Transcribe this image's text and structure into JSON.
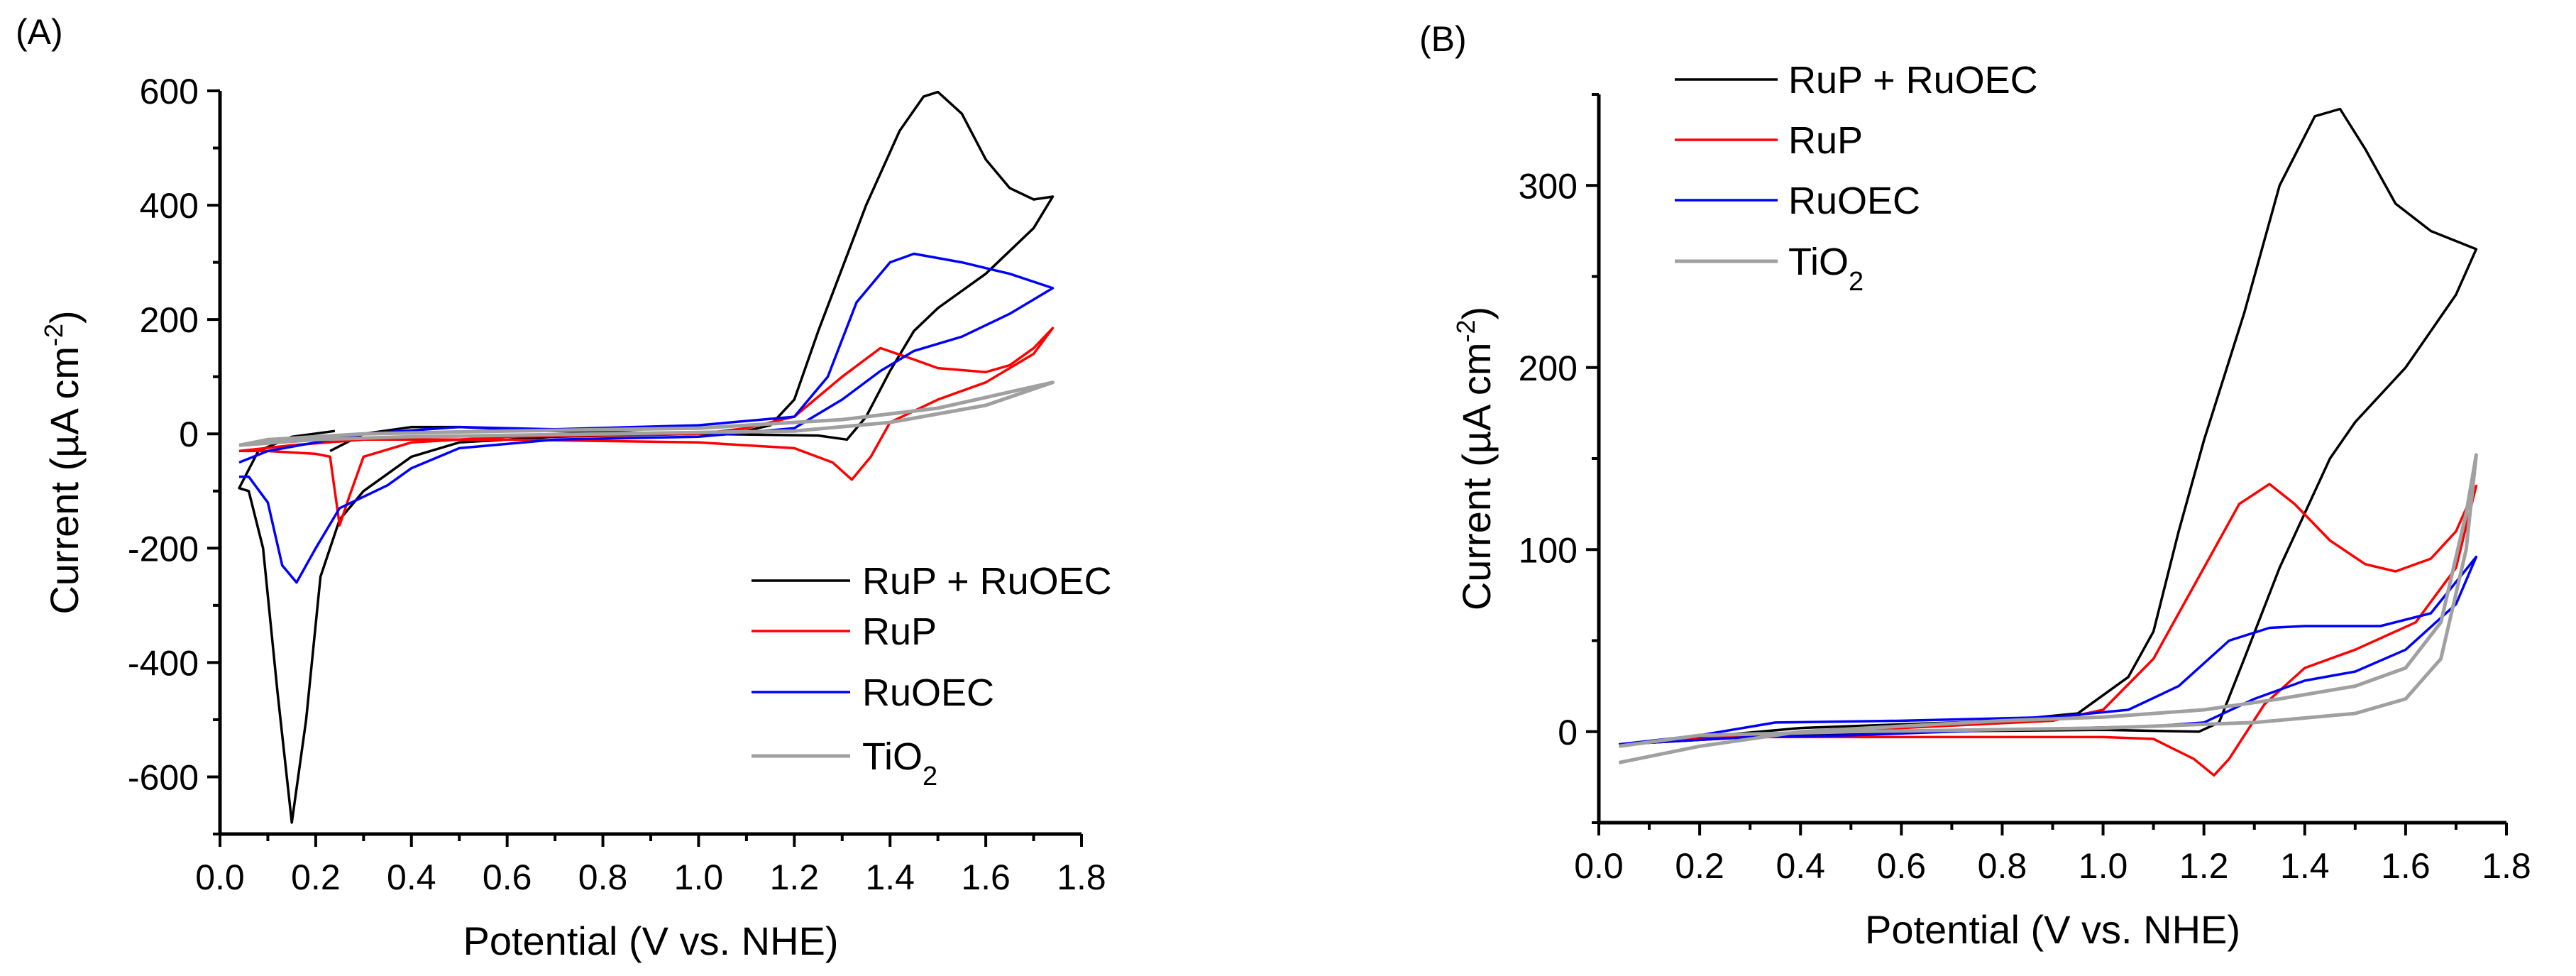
{
  "chart_data": [
    {
      "type": "line",
      "panel_label": "(A)",
      "xlabel": "Potential (V vs. NHE)",
      "ylabel": {
        "main": "Current (µA cm",
        "sup": "-2",
        "end": ")"
      },
      "xlim": [
        0.0,
        1.8
      ],
      "ylim": [
        -700,
        600
      ],
      "xticks": [
        "0.0",
        "0.2",
        "0.4",
        "0.6",
        "0.8",
        "1.0",
        "1.2",
        "1.4",
        "1.6",
        "1.8"
      ],
      "yticks": [
        "-600",
        "-400",
        "-200",
        "0",
        "200",
        "400",
        "600"
      ],
      "grid": false,
      "legend_position": "bottom-right",
      "series": [
        {
          "name": "RuP + RuOEC",
          "color": "#000000",
          "points": [
            [
              0.24,
              5
            ],
            [
              0.15,
              -5
            ],
            [
              0.08,
              -30
            ],
            [
              0.04,
              -95
            ],
            [
              0.06,
              -100
            ],
            [
              0.09,
              -200
            ],
            [
              0.12,
              -450
            ],
            [
              0.15,
              -680
            ],
            [
              0.18,
              -500
            ],
            [
              0.21,
              -250
            ],
            [
              0.25,
              -150
            ],
            [
              0.3,
              -100
            ],
            [
              0.4,
              -40
            ],
            [
              0.5,
              -15
            ],
            [
              0.7,
              -5
            ],
            [
              1.0,
              0
            ],
            [
              1.1,
              5
            ],
            [
              1.15,
              15
            ],
            [
              1.2,
              60
            ],
            [
              1.25,
              180
            ],
            [
              1.3,
              290
            ],
            [
              1.35,
              400
            ],
            [
              1.42,
              530
            ],
            [
              1.47,
              590
            ],
            [
              1.5,
              598
            ],
            [
              1.55,
              560
            ],
            [
              1.6,
              480
            ],
            [
              1.65,
              430
            ],
            [
              1.7,
              410
            ],
            [
              1.74,
              415
            ],
            [
              1.7,
              360
            ],
            [
              1.6,
              280
            ],
            [
              1.5,
              220
            ],
            [
              1.45,
              180
            ],
            [
              1.4,
              110
            ],
            [
              1.35,
              30
            ],
            [
              1.31,
              -10
            ],
            [
              1.25,
              -3
            ],
            [
              1.0,
              0
            ],
            [
              0.7,
              5
            ],
            [
              0.5,
              12
            ],
            [
              0.4,
              12
            ],
            [
              0.3,
              0
            ],
            [
              0.23,
              -30
            ]
          ]
        },
        {
          "name": "RuP",
          "color": "#ff0000",
          "points": [
            [
              0.04,
              -30
            ],
            [
              0.1,
              -30
            ],
            [
              0.2,
              -35
            ],
            [
              0.23,
              -40
            ],
            [
              0.25,
              -160
            ],
            [
              0.27,
              -110
            ],
            [
              0.3,
              -40
            ],
            [
              0.4,
              -15
            ],
            [
              0.6,
              -5
            ],
            [
              1.0,
              0
            ],
            [
              1.1,
              10
            ],
            [
              1.2,
              30
            ],
            [
              1.3,
              100
            ],
            [
              1.38,
              150
            ],
            [
              1.45,
              130
            ],
            [
              1.5,
              115
            ],
            [
              1.6,
              108
            ],
            [
              1.65,
              120
            ],
            [
              1.7,
              150
            ],
            [
              1.74,
              185
            ],
            [
              1.7,
              140
            ],
            [
              1.6,
              90
            ],
            [
              1.5,
              60
            ],
            [
              1.4,
              20
            ],
            [
              1.36,
              -40
            ],
            [
              1.32,
              -80
            ],
            [
              1.28,
              -50
            ],
            [
              1.2,
              -25
            ],
            [
              1.0,
              -15
            ],
            [
              0.6,
              -10
            ],
            [
              0.3,
              -10
            ],
            [
              0.15,
              -20
            ],
            [
              0.04,
              -30
            ]
          ]
        },
        {
          "name": "RuOEC",
          "color": "#0000ff",
          "points": [
            [
              0.04,
              -75
            ],
            [
              0.06,
              -75
            ],
            [
              0.1,
              -120
            ],
            [
              0.13,
              -230
            ],
            [
              0.16,
              -260
            ],
            [
              0.2,
              -200
            ],
            [
              0.25,
              -130
            ],
            [
              0.3,
              -110
            ],
            [
              0.35,
              -90
            ],
            [
              0.4,
              -60
            ],
            [
              0.5,
              -25
            ],
            [
              0.7,
              -10
            ],
            [
              1.0,
              -5
            ],
            [
              1.2,
              10
            ],
            [
              1.3,
              60
            ],
            [
              1.38,
              110
            ],
            [
              1.45,
              145
            ],
            [
              1.55,
              170
            ],
            [
              1.65,
              210
            ],
            [
              1.74,
              255
            ],
            [
              1.65,
              280
            ],
            [
              1.55,
              300
            ],
            [
              1.45,
              315
            ],
            [
              1.4,
              300
            ],
            [
              1.33,
              230
            ],
            [
              1.27,
              100
            ],
            [
              1.2,
              30
            ],
            [
              1.0,
              15
            ],
            [
              0.7,
              8
            ],
            [
              0.5,
              12
            ],
            [
              0.3,
              0
            ],
            [
              0.1,
              -30
            ],
            [
              0.04,
              -50
            ]
          ]
        },
        {
          "name": "TiO",
          "name_sub": "2",
          "color": "#a0a0a0",
          "points": [
            [
              0.04,
              -20
            ],
            [
              0.1,
              -10
            ],
            [
              0.3,
              0
            ],
            [
              0.6,
              5
            ],
            [
              1.0,
              10
            ],
            [
              1.3,
              25
            ],
            [
              1.5,
              45
            ],
            [
              1.74,
              90
            ],
            [
              1.6,
              50
            ],
            [
              1.4,
              20
            ],
            [
              1.2,
              5
            ],
            [
              0.8,
              0
            ],
            [
              0.4,
              -5
            ],
            [
              0.2,
              -10
            ],
            [
              0.04,
              -20
            ]
          ]
        }
      ]
    },
    {
      "type": "line",
      "panel_label": "(B)",
      "xlabel": "Potential (V vs. NHE)",
      "ylabel": {
        "main": "Current (µA cm",
        "sup": "-2",
        "end": ")"
      },
      "xlim": [
        0.0,
        1.8
      ],
      "ylim": [
        -50,
        350
      ],
      "xticks": [
        "0.0",
        "0.2",
        "0.4",
        "0.6",
        "0.8",
        "1.0",
        "1.2",
        "1.4",
        "1.6",
        "1.8"
      ],
      "yticks": [
        "0",
        "100",
        "200",
        "300"
      ],
      "grid": false,
      "legend_position": "top-left",
      "series": [
        {
          "name": "RuP + RuOEC",
          "color": "#000000",
          "points": [
            [
              0.04,
              -7
            ],
            [
              0.2,
              -3
            ],
            [
              0.4,
              2
            ],
            [
              0.6,
              4
            ],
            [
              0.8,
              6
            ],
            [
              0.95,
              10
            ],
            [
              1.05,
              30
            ],
            [
              1.1,
              55
            ],
            [
              1.15,
              110
            ],
            [
              1.2,
              160
            ],
            [
              1.28,
              230
            ],
            [
              1.35,
              300
            ],
            [
              1.42,
              338
            ],
            [
              1.47,
              342
            ],
            [
              1.52,
              320
            ],
            [
              1.58,
              290
            ],
            [
              1.65,
              275
            ],
            [
              1.74,
              265
            ],
            [
              1.7,
              240
            ],
            [
              1.6,
              200
            ],
            [
              1.5,
              170
            ],
            [
              1.45,
              150
            ],
            [
              1.35,
              90
            ],
            [
              1.28,
              40
            ],
            [
              1.23,
              5
            ],
            [
              1.19,
              0
            ],
            [
              1.0,
              1
            ],
            [
              0.6,
              0
            ],
            [
              0.3,
              -3
            ],
            [
              0.04,
              -7
            ]
          ]
        },
        {
          "name": "RuP",
          "color": "#ff0000",
          "points": [
            [
              0.04,
              -7
            ],
            [
              0.3,
              -2
            ],
            [
              0.6,
              2
            ],
            [
              0.9,
              6
            ],
            [
              1.0,
              12
            ],
            [
              1.1,
              40
            ],
            [
              1.2,
              90
            ],
            [
              1.27,
              125
            ],
            [
              1.33,
              136
            ],
            [
              1.38,
              125
            ],
            [
              1.45,
              105
            ],
            [
              1.52,
              92
            ],
            [
              1.58,
              88
            ],
            [
              1.65,
              95
            ],
            [
              1.7,
              110
            ],
            [
              1.74,
              135
            ],
            [
              1.7,
              90
            ],
            [
              1.62,
              60
            ],
            [
              1.5,
              45
            ],
            [
              1.4,
              35
            ],
            [
              1.32,
              15
            ],
            [
              1.25,
              -15
            ],
            [
              1.22,
              -24
            ],
            [
              1.18,
              -15
            ],
            [
              1.1,
              -4
            ],
            [
              1.0,
              -3
            ],
            [
              0.6,
              -3
            ],
            [
              0.3,
              -3
            ],
            [
              0.04,
              -7
            ]
          ]
        },
        {
          "name": "RuOEC",
          "color": "#0000ff",
          "points": [
            [
              0.04,
              -7
            ],
            [
              0.2,
              -2
            ],
            [
              0.35,
              5
            ],
            [
              0.6,
              6
            ],
            [
              0.9,
              8
            ],
            [
              1.05,
              12
            ],
            [
              1.15,
              25
            ],
            [
              1.25,
              50
            ],
            [
              1.33,
              57
            ],
            [
              1.4,
              58
            ],
            [
              1.55,
              58
            ],
            [
              1.65,
              65
            ],
            [
              1.74,
              96
            ],
            [
              1.7,
              70
            ],
            [
              1.6,
              45
            ],
            [
              1.5,
              33
            ],
            [
              1.4,
              28
            ],
            [
              1.3,
              18
            ],
            [
              1.2,
              5
            ],
            [
              1.1,
              3
            ],
            [
              0.8,
              1
            ],
            [
              0.5,
              -2
            ],
            [
              0.3,
              -3
            ],
            [
              0.04,
              -7
            ]
          ]
        },
        {
          "name": "TiO",
          "name_sub": "2",
          "color": "#a0a0a0",
          "points": [
            [
              0.04,
              -17
            ],
            [
              0.2,
              -8
            ],
            [
              0.4,
              0
            ],
            [
              0.8,
              6
            ],
            [
              1.0,
              8
            ],
            [
              1.2,
              12
            ],
            [
              1.35,
              18
            ],
            [
              1.5,
              25
            ],
            [
              1.6,
              35
            ],
            [
              1.67,
              60
            ],
            [
              1.72,
              120
            ],
            [
              1.74,
              152
            ],
            [
              1.72,
              100
            ],
            [
              1.67,
              40
            ],
            [
              1.6,
              18
            ],
            [
              1.5,
              10
            ],
            [
              1.3,
              5
            ],
            [
              1.0,
              2
            ],
            [
              0.5,
              0
            ],
            [
              0.2,
              -2
            ],
            [
              0.04,
              -8
            ]
          ]
        }
      ]
    }
  ]
}
